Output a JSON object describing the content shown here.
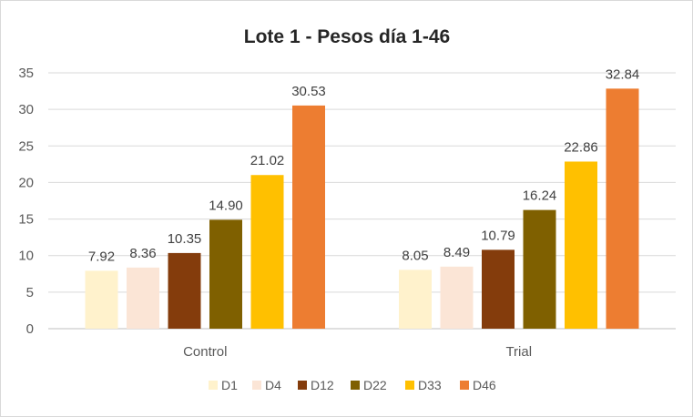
{
  "chart_data": {
    "type": "bar",
    "title": "Lote 1 - Pesos día 1-46",
    "xlabel": "",
    "ylabel": "",
    "ylim": [
      0,
      35
    ],
    "yticks": [
      0,
      5,
      10,
      15,
      20,
      25,
      30,
      35
    ],
    "grid": true,
    "legend_position": "bottom",
    "categories": [
      "Control",
      "Trial"
    ],
    "series": [
      {
        "name": "D1",
        "color": "#FFF2CC",
        "values": [
          7.92,
          8.05
        ],
        "labels": [
          "7.92",
          "8.05"
        ]
      },
      {
        "name": "D4",
        "color": "#FBE5D6",
        "values": [
          8.36,
          8.49
        ],
        "labels": [
          "8.36",
          "8.49"
        ]
      },
      {
        "name": "D12",
        "color": "#843C0C",
        "values": [
          10.35,
          10.79
        ],
        "labels": [
          "10.35",
          "10.79"
        ]
      },
      {
        "name": "D22",
        "color": "#7F6000",
        "values": [
          14.9,
          16.24
        ],
        "labels": [
          "14.90",
          "16.24"
        ]
      },
      {
        "name": "D33",
        "color": "#FFC000",
        "values": [
          21.02,
          22.86
        ],
        "labels": [
          "21.02",
          "22.86"
        ]
      },
      {
        "name": "D46",
        "color": "#ED7D31",
        "values": [
          30.53,
          32.84
        ],
        "labels": [
          "30.53",
          "32.84"
        ]
      }
    ]
  }
}
